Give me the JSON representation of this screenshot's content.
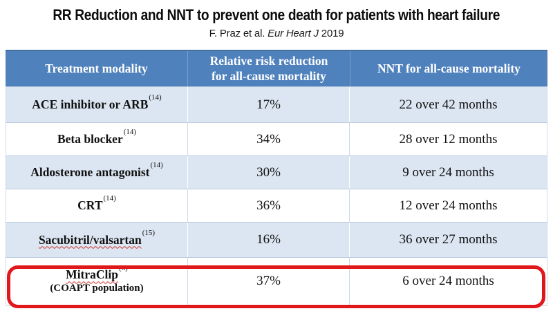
{
  "slide": {
    "title": "RR Reduction and NNT to prevent one death for patients with heart failure",
    "subtitle": {
      "prefix": "F. Praz et al.",
      "journal": "Eur Heart J",
      "year": "2019"
    }
  },
  "table": {
    "headers": {
      "treatment": "Treatment modality",
      "rrr_line1": "Relative risk reduction",
      "rrr_line2": "for all-cause mortality",
      "nnt": "NNT for all-cause mortality"
    },
    "rows": [
      {
        "treatment": "ACE inhibitor or ARB",
        "ref": "(14)",
        "rrr": "17%",
        "nnt": "22 over 42 months"
      },
      {
        "treatment": "Beta blocker",
        "ref": "(14)",
        "rrr": "34%",
        "nnt": "28 over 12 months"
      },
      {
        "treatment": "Aldosterone antagonist",
        "ref": "(14)",
        "rrr": "30%",
        "nnt": "9 over 24 months"
      },
      {
        "treatment": "CRT",
        "ref": "(14)",
        "rrr": "36%",
        "nnt": "12 over 24 months"
      },
      {
        "treatment": "Sacubitril/valsartan",
        "ref": "(15)",
        "rrr": "16%",
        "nnt": "36 over 27 months"
      },
      {
        "treatment": "MitraClip",
        "ref": "(6)",
        "note": "(COAPT population)",
        "rrr": "37%",
        "nnt": "6 over 24 months"
      }
    ]
  },
  "colors": {
    "header_bg": "#4f81bd",
    "header_text": "#ffffff",
    "row_shaded_bg": "#dce6f2",
    "row_plain_bg": "#ffffff",
    "row_border": "#b9c9de",
    "highlight_red": "#e0181c",
    "spellcheck_red": "#d0342c"
  }
}
